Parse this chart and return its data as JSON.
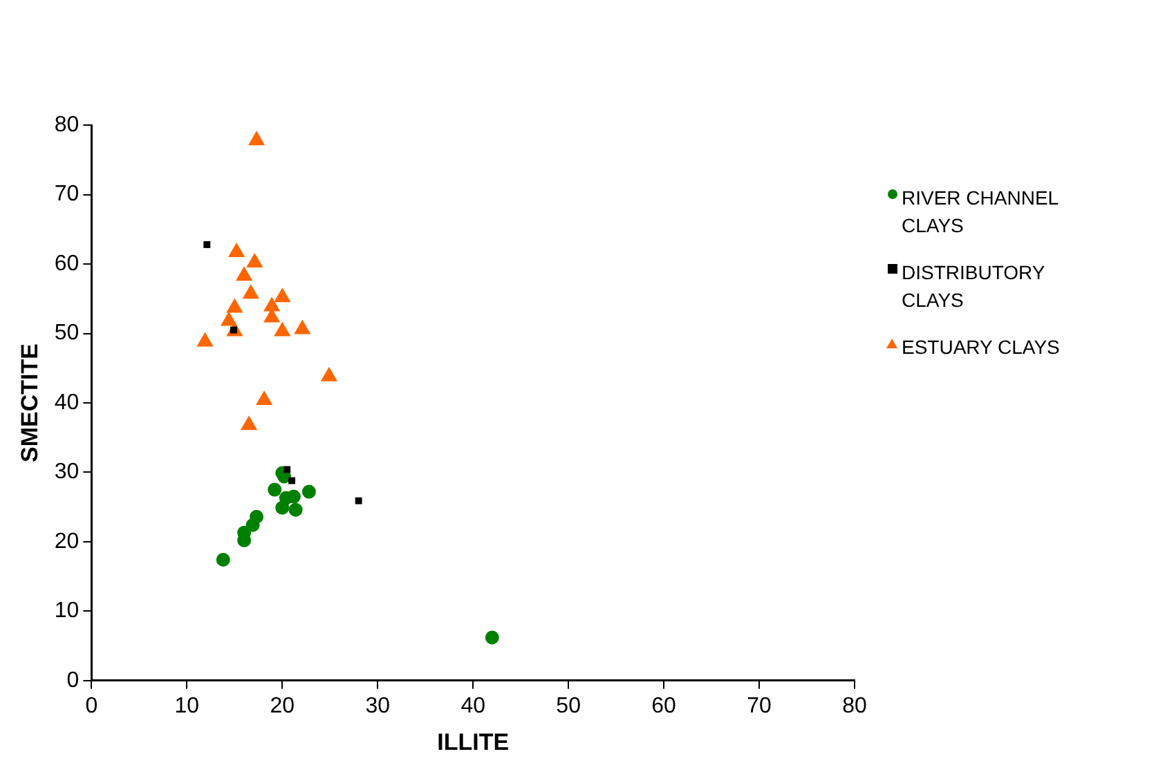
{
  "chart_data": {
    "type": "scatter",
    "xlabel": "ILLITE",
    "ylabel": "SMECTITE",
    "xlim": [
      0,
      80
    ],
    "ylim": [
      0,
      80
    ],
    "xticks": [
      0,
      10,
      20,
      30,
      40,
      50,
      60,
      70,
      80
    ],
    "yticks": [
      0,
      10,
      20,
      30,
      40,
      50,
      60,
      70,
      80
    ],
    "grid": false,
    "legend": "right",
    "series": [
      {
        "name": "RIVER CHANNEL CLAYS",
        "color": "#008000",
        "marker": "circle",
        "x": [
          13.8,
          16.0,
          16.0,
          16.9,
          17.3,
          19.2,
          20.0,
          20.2,
          20.4,
          21.2,
          20.0,
          21.4,
          22.8,
          42.0
        ],
        "values": [
          17.4,
          20.2,
          21.3,
          22.4,
          23.6,
          27.5,
          29.9,
          29.4,
          26.3,
          26.5,
          24.9,
          24.6,
          27.2,
          6.2
        ]
      },
      {
        "name": "DISTRIBUTORY CLAYS",
        "color": "#000000",
        "marker": "square",
        "x": [
          12.1,
          14.9,
          20.5,
          21.0,
          28.0
        ],
        "values": [
          62.8,
          50.5,
          30.4,
          28.8,
          25.9
        ]
      },
      {
        "name": "ESTUARY CLAYS",
        "color": "#ff6600",
        "marker": "triangle",
        "x": [
          17.3,
          15.2,
          17.1,
          16.0,
          16.7,
          20.0,
          18.9,
          15.0,
          18.9,
          14.4,
          15.0,
          20.0,
          22.1,
          11.9,
          24.9,
          18.1,
          16.5
        ],
        "values": [
          77.8,
          61.7,
          60.2,
          58.3,
          55.7,
          55.2,
          53.9,
          53.7,
          52.3,
          51.8,
          50.3,
          50.3,
          50.6,
          48.8,
          43.8,
          40.4,
          36.8
        ]
      }
    ]
  }
}
